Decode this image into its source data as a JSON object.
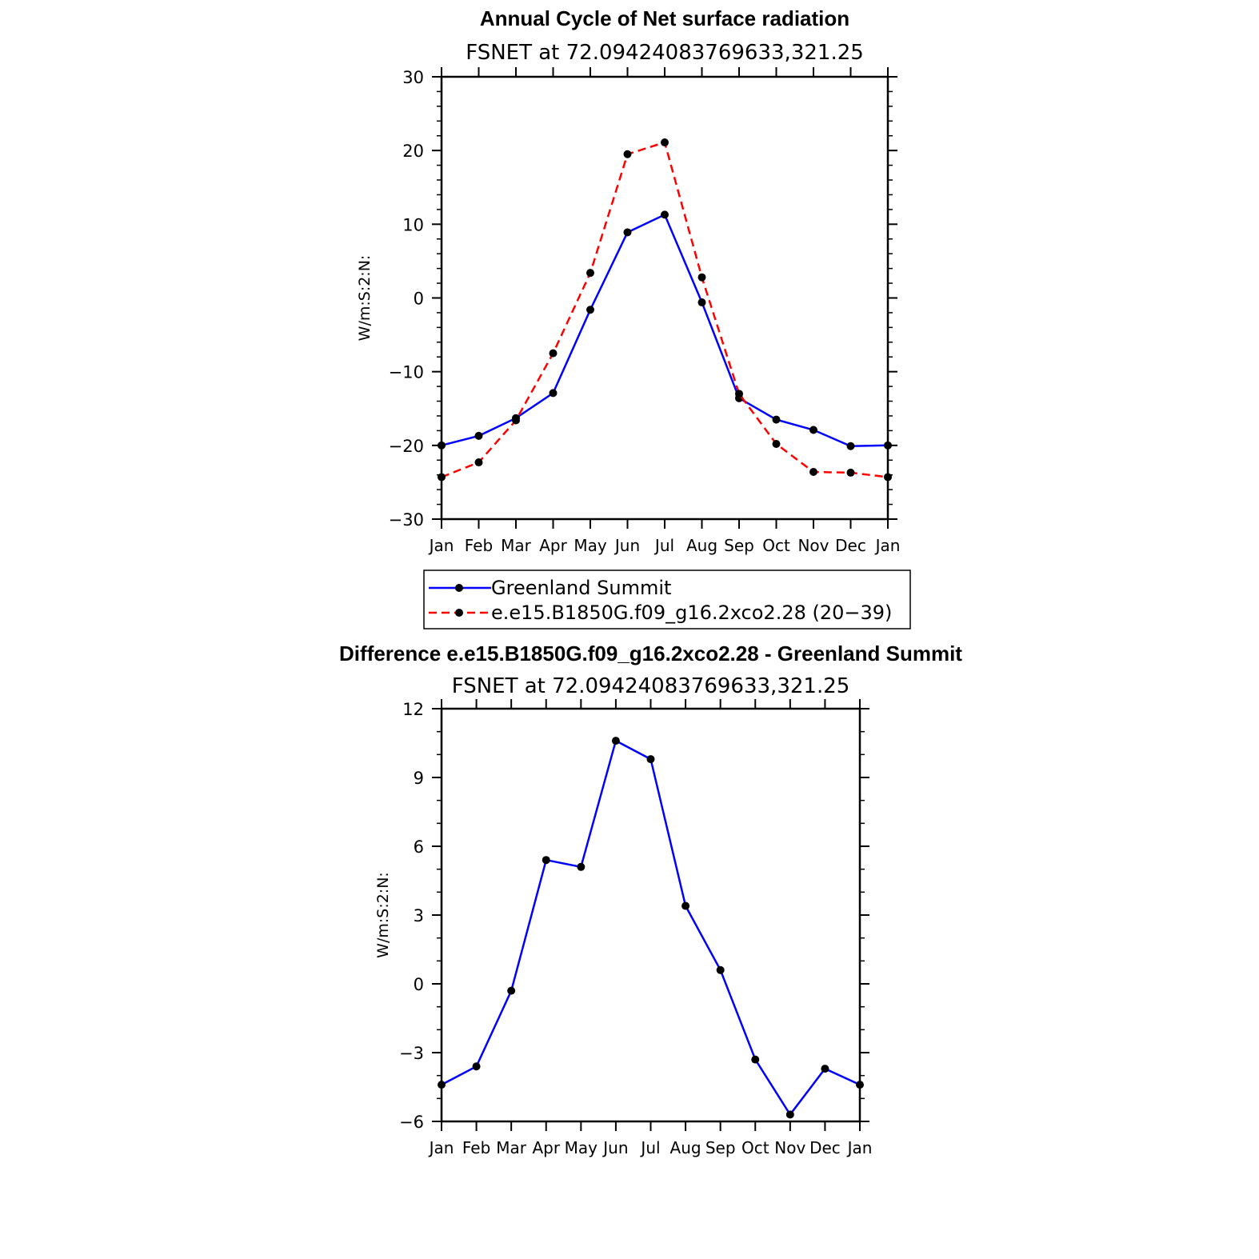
{
  "chart_data": [
    {
      "type": "line",
      "title": "Annual Cycle of Net surface radiation",
      "subtitle": "FSNET at 72.09424083769633,321.25",
      "xlabel": "",
      "ylabel": "W/m:S:2:N:",
      "categories": [
        "Jan",
        "Feb",
        "Mar",
        "Apr",
        "May",
        "Jun",
        "Jul",
        "Aug",
        "Sep",
        "Oct",
        "Nov",
        "Dec",
        "Jan"
      ],
      "ylim": [
        -30,
        30
      ],
      "yticks": [
        -30,
        -20,
        -10,
        0,
        10,
        20,
        30
      ],
      "ytick_labels": [
        "−30",
        "−20",
        "−10",
        "0",
        "10",
        "20",
        "30"
      ],
      "grid": false,
      "legend_position": "below",
      "series": [
        {
          "name": "Greenland Summit",
          "color": "#0000ff",
          "dash": "solid",
          "values": [
            -20.0,
            -18.7,
            -16.3,
            -12.9,
            -1.6,
            8.9,
            11.3,
            -0.6,
            -13.6,
            -16.5,
            -17.9,
            -20.1,
            -20.0
          ]
        },
        {
          "name": "e.e15.B1850G.f09_g16.2xco2.28 (20−39)",
          "color": "#ff0000",
          "dash": "dashed",
          "values": [
            -24.3,
            -22.3,
            -16.6,
            -7.5,
            3.4,
            19.5,
            21.1,
            2.8,
            -13.0,
            -19.8,
            -23.6,
            -23.7,
            -24.3
          ]
        }
      ]
    },
    {
      "type": "line",
      "title": "Difference e.e15.B1850G.f09_g16.2xco2.28 - Greenland Summit",
      "subtitle": "FSNET at 72.09424083769633,321.25",
      "xlabel": "",
      "ylabel": "W/m:S:2:N:",
      "categories": [
        "Jan",
        "Feb",
        "Mar",
        "Apr",
        "May",
        "Jun",
        "Jul",
        "Aug",
        "Sep",
        "Oct",
        "Nov",
        "Dec",
        "Jan"
      ],
      "ylim": [
        -6,
        12
      ],
      "yticks": [
        -6,
        -3,
        0,
        3,
        6,
        9,
        12
      ],
      "ytick_labels": [
        "−6",
        "−3",
        "0",
        "3",
        "6",
        "9",
        "12"
      ],
      "grid": false,
      "series": [
        {
          "name": "Difference",
          "color": "#0000ff",
          "dash": "solid",
          "values": [
            -4.4,
            -3.6,
            -0.3,
            5.4,
            5.1,
            10.6,
            9.8,
            3.4,
            0.6,
            -3.3,
            -5.7,
            -3.7,
            -4.4
          ]
        }
      ]
    }
  ]
}
